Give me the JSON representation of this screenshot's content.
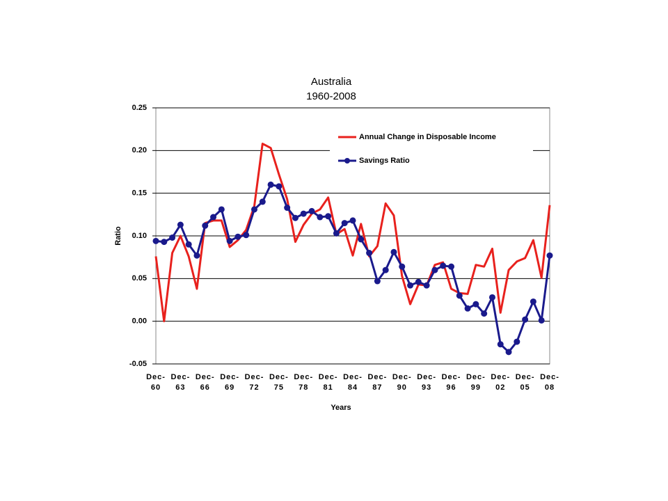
{
  "chart_data": {
    "type": "line",
    "title": "Australia",
    "subtitle": "1960-2008",
    "x_label": "Years",
    "y_label": "Ratio",
    "categories": [
      "Dec-60",
      null,
      null,
      "Dec-63",
      null,
      null,
      "Dec-66",
      null,
      null,
      "Dec-69",
      null,
      null,
      "Dec-72",
      null,
      null,
      "Dec-75",
      null,
      null,
      "Dec-78",
      null,
      null,
      "Dec-81",
      null,
      null,
      "Dec-84",
      null,
      null,
      "Dec-87",
      null,
      null,
      "Dec-90",
      null,
      null,
      "Dec-93",
      null,
      null,
      "Dec-96",
      null,
      null,
      "Dec-99",
      null,
      null,
      "Dec-02",
      null,
      null,
      "Dec-05",
      null,
      null,
      "Dec-08"
    ],
    "series": [
      {
        "name": "Annual Change in Disposable Income",
        "color": "#e8211d",
        "marker": false,
        "values": [
          0.076,
          0.0,
          0.08,
          0.1,
          0.076,
          0.038,
          0.115,
          0.118,
          0.118,
          0.087,
          0.095,
          0.107,
          0.135,
          0.208,
          0.203,
          0.172,
          0.143,
          0.093,
          0.113,
          0.126,
          0.131,
          0.145,
          0.102,
          0.108,
          0.077,
          0.114,
          0.076,
          0.088,
          0.138,
          0.124,
          0.053,
          0.02,
          0.043,
          0.042,
          0.066,
          0.069,
          0.038,
          0.033,
          0.032,
          0.066,
          0.064,
          0.085,
          0.01,
          0.06,
          0.07,
          0.074,
          0.095,
          0.051,
          0.136
        ]
      },
      {
        "name": "Savings Ratio",
        "color": "#1a1a8c",
        "marker": true,
        "values": [
          0.094,
          0.093,
          0.098,
          0.113,
          0.09,
          0.077,
          0.112,
          0.122,
          0.131,
          0.094,
          0.099,
          0.101,
          0.131,
          0.14,
          0.16,
          0.158,
          0.133,
          0.121,
          0.126,
          0.129,
          0.122,
          0.123,
          0.103,
          0.115,
          0.118,
          0.096,
          0.08,
          0.047,
          0.06,
          0.081,
          0.064,
          0.042,
          0.046,
          0.042,
          0.06,
          0.065,
          0.064,
          0.03,
          0.015,
          0.02,
          0.009,
          0.028,
          -0.027,
          -0.036,
          -0.024,
          0.002,
          0.023,
          0.001,
          0.077
        ]
      }
    ],
    "ylim": [
      -0.05,
      0.25
    ],
    "yticks": [
      -0.05,
      {
        "value": 0.0,
        "label": "0.00"
      },
      0.05,
      {
        "value": 0.1,
        "label": "0.10"
      },
      0.15,
      {
        "value": 0.2,
        "label": "0.20"
      },
      0.25
    ],
    "grid": true,
    "legend": "upper right"
  }
}
